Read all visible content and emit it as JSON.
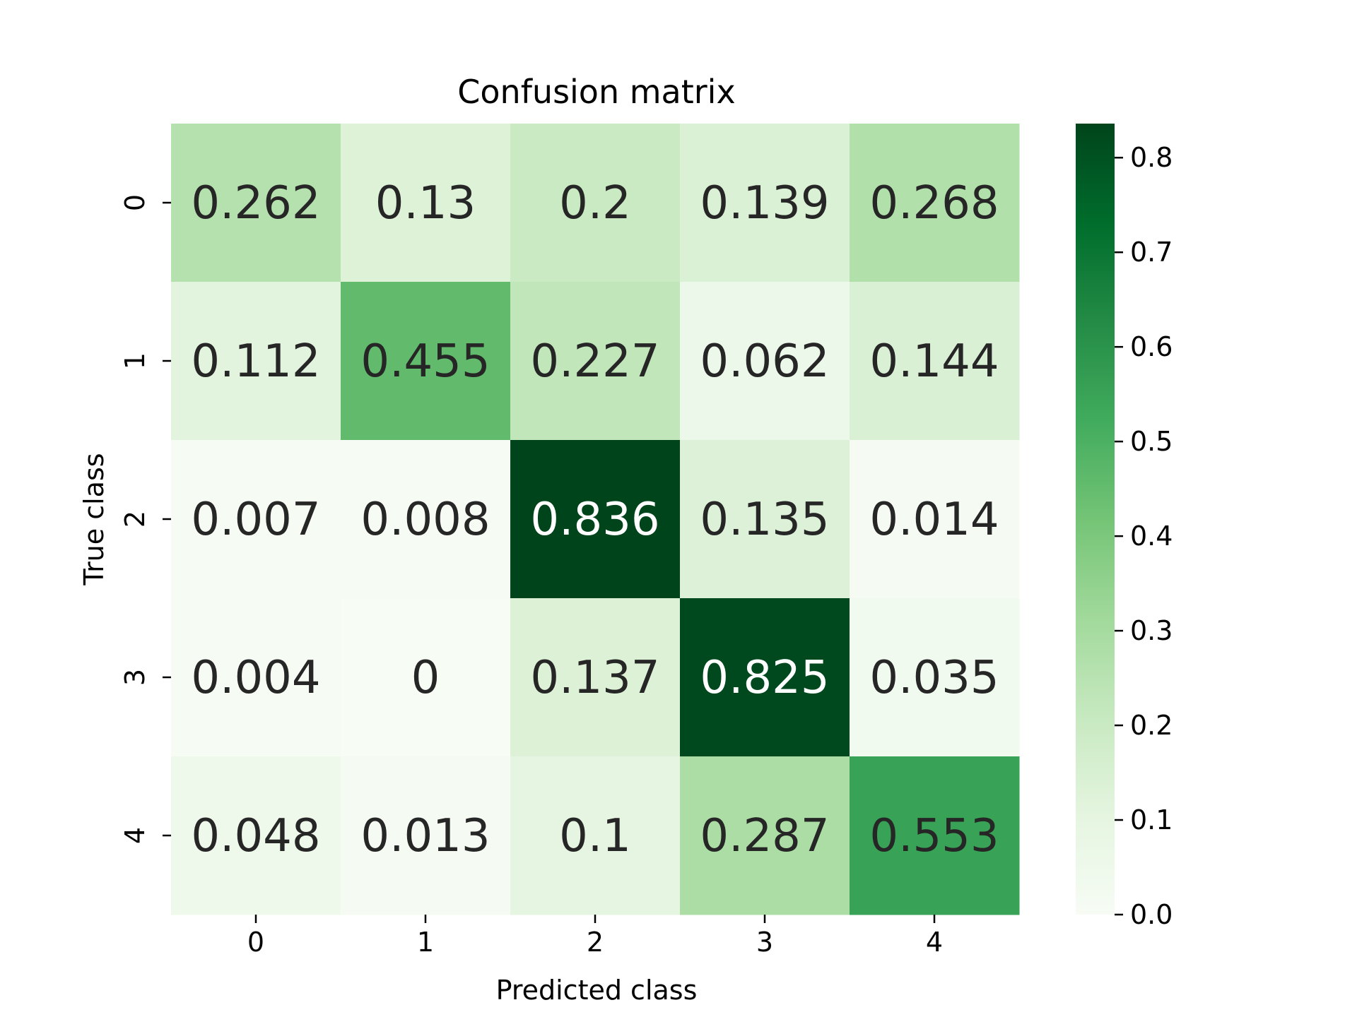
{
  "chart_data": {
    "type": "heatmap",
    "title": "Confusion matrix",
    "xlabel": "Predicted class",
    "ylabel": "True class",
    "x_categories": [
      "0",
      "1",
      "2",
      "3",
      "4"
    ],
    "y_categories": [
      "0",
      "1",
      "2",
      "3",
      "4"
    ],
    "values": [
      [
        0.262,
        0.13,
        0.2,
        0.139,
        0.268
      ],
      [
        0.112,
        0.455,
        0.227,
        0.062,
        0.144
      ],
      [
        0.007,
        0.008,
        0.836,
        0.135,
        0.014
      ],
      [
        0.004,
        0,
        0.137,
        0.825,
        0.035
      ],
      [
        0.048,
        0.013,
        0.1,
        0.287,
        0.553
      ]
    ],
    "value_labels": [
      [
        "0.262",
        "0.13",
        "0.2",
        "0.139",
        "0.268"
      ],
      [
        "0.112",
        "0.455",
        "0.227",
        "0.062",
        "0.144"
      ],
      [
        "0.007",
        "0.008",
        "0.836",
        "0.135",
        "0.014"
      ],
      [
        "0.004",
        "0",
        "0.137",
        "0.825",
        "0.035"
      ],
      [
        "0.048",
        "0.013",
        "0.1",
        "0.287",
        "0.553"
      ]
    ],
    "colorbar": {
      "range": [
        0,
        0.836
      ],
      "ticks": [
        "0.0",
        "0.1",
        "0.2",
        "0.3",
        "0.4",
        "0.5",
        "0.6",
        "0.7",
        "0.8"
      ],
      "colormap": [
        "#f7fcf5",
        "#e5f5e0",
        "#c7e9c0",
        "#a1d99b",
        "#74c476",
        "#41ab5d",
        "#238b45",
        "#006d2c",
        "#00441b"
      ]
    },
    "text_colors": {
      "light": "#ffffff",
      "dark": "#262626"
    }
  }
}
